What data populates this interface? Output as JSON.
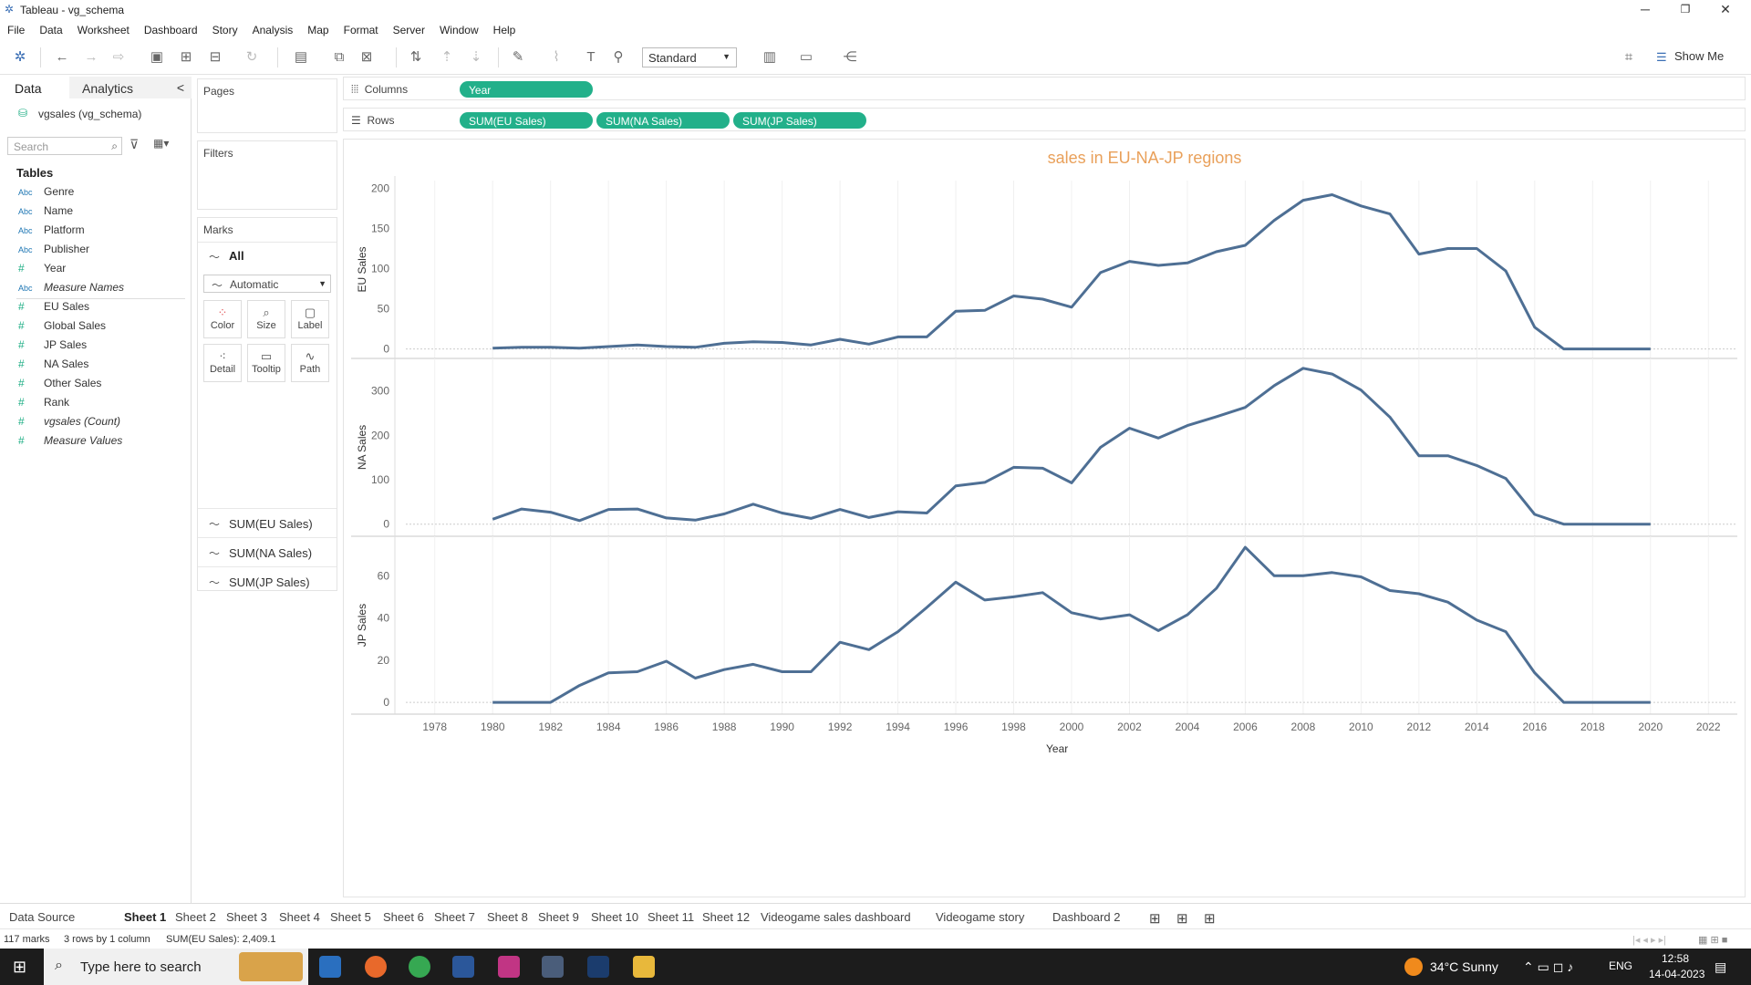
{
  "window": {
    "title": "Tableau - vg_schema"
  },
  "menu": [
    "File",
    "Data",
    "Worksheet",
    "Dashboard",
    "Story",
    "Analysis",
    "Map",
    "Format",
    "Server",
    "Window",
    "Help"
  ],
  "toolbar": {
    "fit_select": "Standard",
    "show_me": "Show Me"
  },
  "data_pane": {
    "tab_data": "Data",
    "tab_analytics": "Analytics",
    "datasource": "vgsales (vg_schema)",
    "search_placeholder": "Search",
    "tables_header": "Tables",
    "fields": [
      {
        "type": "Abc",
        "name": "Genre",
        "italic": false
      },
      {
        "type": "Abc",
        "name": "Name",
        "italic": false
      },
      {
        "type": "Abc",
        "name": "Platform",
        "italic": false
      },
      {
        "type": "Abc",
        "name": "Publisher",
        "italic": false
      },
      {
        "type": "#",
        "name": "Year",
        "italic": false
      },
      {
        "type": "Abc",
        "name": "Measure Names",
        "italic": true
      },
      {
        "type": "#",
        "name": "EU Sales",
        "italic": false
      },
      {
        "type": "#",
        "name": "Global Sales",
        "italic": false
      },
      {
        "type": "#",
        "name": "JP Sales",
        "italic": false
      },
      {
        "type": "#",
        "name": "NA Sales",
        "italic": false
      },
      {
        "type": "#",
        "name": "Other Sales",
        "italic": false
      },
      {
        "type": "#",
        "name": "Rank",
        "italic": false
      },
      {
        "type": "#",
        "name": "vgsales (Count)",
        "italic": true
      },
      {
        "type": "#",
        "name": "Measure Values",
        "italic": true
      }
    ]
  },
  "cards": {
    "pages": "Pages",
    "filters": "Filters",
    "marks": "Marks",
    "marks_all": "All",
    "mark_type": "Automatic",
    "mark_buttons": [
      "Color",
      "Size",
      "Label",
      "Detail",
      "Tooltip",
      "Path"
    ],
    "measures": [
      "SUM(EU Sales)",
      "SUM(NA Sales)",
      "SUM(JP Sales)"
    ]
  },
  "shelves": {
    "columns_label": "Columns",
    "rows_label": "Rows",
    "columns_pills": [
      "Year"
    ],
    "rows_pills": [
      "SUM(EU Sales)",
      "SUM(NA Sales)",
      "SUM(JP Sales)"
    ]
  },
  "chart_data": {
    "type": "line",
    "title": "sales in EU-NA-JP regions",
    "xlabel": "Year",
    "xlim": [
      1977,
      2023
    ],
    "x_ticks": [
      1978,
      1980,
      1982,
      1984,
      1986,
      1988,
      1990,
      1992,
      1994,
      1996,
      1998,
      2000,
      2002,
      2004,
      2006,
      2008,
      2010,
      2012,
      2014,
      2016,
      2018,
      2020,
      2022
    ],
    "x": [
      1980,
      1981,
      1982,
      1983,
      1984,
      1985,
      1986,
      1987,
      1988,
      1989,
      1990,
      1991,
      1992,
      1993,
      1994,
      1995,
      1996,
      1997,
      1998,
      1999,
      2000,
      2001,
      2002,
      2003,
      2004,
      2005,
      2006,
      2007,
      2008,
      2009,
      2010,
      2011,
      2012,
      2013,
      2014,
      2015,
      2016,
      2017,
      2018,
      2019,
      2020
    ],
    "color": "#4e6f94",
    "panes": [
      {
        "ylabel": "EU Sales",
        "ylim": [
          -5,
          205
        ],
        "y_ticks": [
          0,
          50,
          100,
          150,
          200
        ],
        "values": [
          1,
          2,
          2,
          1,
          3,
          5,
          3,
          2,
          7,
          9,
          8,
          5,
          12,
          6,
          15,
          15,
          47,
          48,
          66,
          62,
          52,
          95,
          109,
          104,
          107,
          121,
          129,
          160,
          185,
          192,
          178,
          168,
          118,
          125,
          125,
          97,
          27,
          0,
          0,
          0,
          0
        ]
      },
      {
        "ylabel": "NA Sales",
        "ylim": [
          -15,
          365
        ],
        "y_ticks": [
          0,
          100,
          200,
          300
        ],
        "values": [
          11,
          34,
          27,
          8,
          33,
          34,
          14,
          9,
          23,
          45,
          25,
          13,
          33,
          15,
          28,
          25,
          86,
          94,
          128,
          126,
          93,
          173,
          216,
          194,
          222,
          242,
          263,
          312,
          351,
          338,
          302,
          241,
          154,
          154,
          132,
          103,
          22,
          0,
          0,
          0,
          0
        ]
      },
      {
        "ylabel": "JP Sales",
        "ylim": [
          -3,
          77
        ],
        "y_ticks": [
          0,
          20,
          40,
          60
        ],
        "values": [
          0,
          0,
          0,
          8,
          14,
          14.5,
          19.5,
          11.5,
          15.5,
          18,
          14.5,
          14.5,
          28.5,
          25,
          33.5,
          45,
          57,
          48.5,
          50,
          52,
          42.5,
          39.5,
          41.5,
          34,
          41.5,
          54,
          73.5,
          60,
          60,
          61.5,
          59.5,
          53,
          51.5,
          47.5,
          39,
          33.5,
          14,
          0,
          0,
          0,
          0
        ]
      }
    ]
  },
  "sheet_tabs": [
    "Data Source",
    "Sheet 1",
    "Sheet 2",
    "Sheet 3",
    "Sheet 4",
    "Sheet 5",
    "Sheet 6",
    "Sheet 7",
    "Sheet 8",
    "Sheet 9",
    "Sheet 10",
    "Sheet 11",
    "Sheet 12",
    "Videogame sales dashboard",
    "Videogame story",
    "Dashboard 2"
  ],
  "status": {
    "marks": "117 marks",
    "rows_cols": "3 rows by 1 column",
    "sum": "SUM(EU Sales): 2,409.1"
  },
  "taskbar": {
    "search_placeholder": "Type here to search",
    "weather": "34°C  Sunny",
    "lang": "ENG",
    "time": "12:58",
    "date": "14-04-2023"
  }
}
